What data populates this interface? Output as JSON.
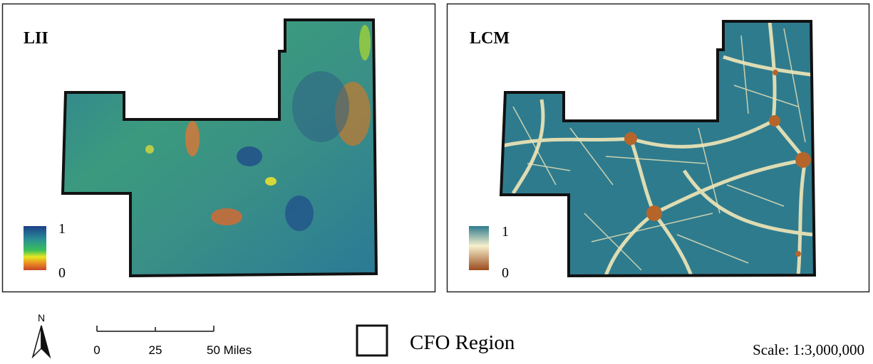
{
  "panels": [
    {
      "title": "LII",
      "legend_max": "1",
      "legend_min": "0"
    },
    {
      "title": "LCM",
      "legend_max": "1",
      "legend_min": "0"
    }
  ],
  "north_arrow": "N",
  "scale_bar": {
    "labels": [
      "0",
      "25",
      "50 Miles"
    ]
  },
  "legend": {
    "label": "CFO Region"
  },
  "scale": "Scale: 1:3,000,000"
}
